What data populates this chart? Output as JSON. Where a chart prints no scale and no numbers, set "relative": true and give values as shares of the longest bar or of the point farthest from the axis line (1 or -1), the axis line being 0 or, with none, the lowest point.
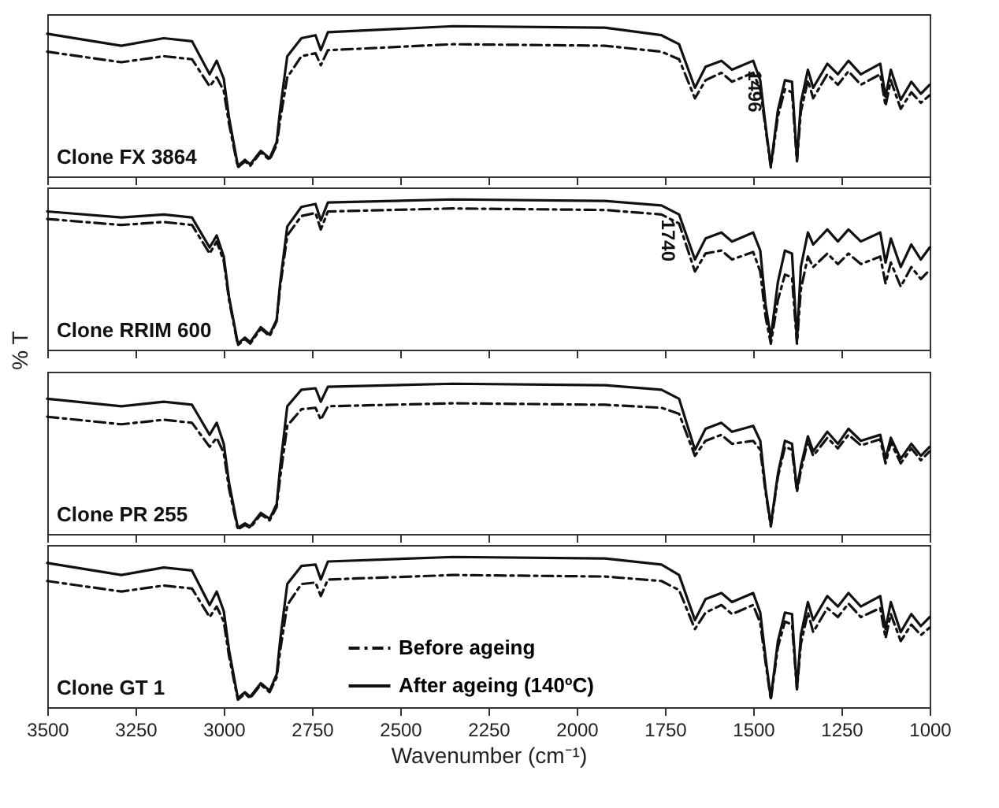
{
  "chart_data": [
    {
      "type": "line",
      "relative": true,
      "xlim": [
        3500,
        1000
      ],
      "xticks": [
        3500,
        3250,
        3000,
        2750,
        2500,
        2250,
        2000,
        1750,
        1500,
        1250,
        1000
      ],
      "tick_labels": false,
      "x": [
        3500,
        3290,
        3170,
        3090,
        3040,
        3020,
        3000,
        2985,
        2960,
        2940,
        2925,
        2895,
        2870,
        2850,
        2840,
        2820,
        2780,
        2740,
        2725,
        2705,
        2350,
        1920,
        1760,
        1710,
        1665,
        1635,
        1590,
        1560,
        1500,
        1480,
        1465,
        1450,
        1430,
        1410,
        1390,
        1376,
        1365,
        1345,
        1330,
        1290,
        1260,
        1230,
        1195,
        1140,
        1125,
        1110,
        1082,
        1052,
        1025,
        1000
      ],
      "annotations": [
        "Clone FX 3864",
        {
          "text": "1496",
          "x": 1496,
          "y": 0.77
        }
      ],
      "series": [
        {
          "color": "#111111",
          "line_style": "dashed",
          "values": [
            0.83,
            0.76,
            0.8,
            0.78,
            0.6,
            0.66,
            0.57,
            0.35,
            0.06,
            0.1,
            0.07,
            0.16,
            0.11,
            0.21,
            0.38,
            0.66,
            0.8,
            0.82,
            0.74,
            0.84,
            0.88,
            0.87,
            0.83,
            0.78,
            0.52,
            0.64,
            0.69,
            0.63,
            0.69,
            0.58,
            0.32,
            0.06,
            0.4,
            0.58,
            0.56,
            0.1,
            0.43,
            0.64,
            0.52,
            0.68,
            0.61,
            0.7,
            0.61,
            0.68,
            0.47,
            0.64,
            0.45,
            0.56,
            0.49,
            0.54
          ]
        },
        {
          "color": "#111111",
          "line_style": "solid",
          "values": [
            0.95,
            0.87,
            0.92,
            0.9,
            0.68,
            0.77,
            0.65,
            0.39,
            0.07,
            0.11,
            0.08,
            0.17,
            0.12,
            0.23,
            0.45,
            0.8,
            0.92,
            0.94,
            0.84,
            0.96,
            1.0,
            0.99,
            0.94,
            0.88,
            0.59,
            0.73,
            0.77,
            0.71,
            0.77,
            0.64,
            0.34,
            0.07,
            0.44,
            0.64,
            0.63,
            0.11,
            0.49,
            0.71,
            0.59,
            0.75,
            0.68,
            0.77,
            0.68,
            0.75,
            0.53,
            0.71,
            0.51,
            0.63,
            0.55,
            0.61
          ]
        }
      ]
    },
    {
      "type": "line",
      "relative": true,
      "xlim": [
        3500,
        1000
      ],
      "xticks": [
        3500,
        3250,
        3000,
        2750,
        2500,
        2250,
        2000,
        1750,
        1500,
        1250,
        1000
      ],
      "tick_labels": false,
      "ylabel": "% T",
      "x": [
        3500,
        3290,
        3170,
        3090,
        3040,
        3020,
        3000,
        2985,
        2960,
        2940,
        2925,
        2895,
        2870,
        2850,
        2840,
        2820,
        2780,
        2740,
        2725,
        2705,
        2350,
        1920,
        1760,
        1710,
        1665,
        1635,
        1590,
        1560,
        1500,
        1480,
        1465,
        1450,
        1430,
        1410,
        1390,
        1376,
        1365,
        1345,
        1330,
        1290,
        1260,
        1230,
        1195,
        1140,
        1125,
        1110,
        1082,
        1052,
        1025,
        1000
      ],
      "annotations": [
        "Clone RRIM 600",
        {
          "text": "1740",
          "x": 1740,
          "y": 0.93
        }
      ],
      "series": [
        {
          "color": "#111111",
          "line_style": "dashed",
          "values": [
            0.87,
            0.83,
            0.85,
            0.83,
            0.64,
            0.72,
            0.59,
            0.33,
            0.03,
            0.07,
            0.04,
            0.14,
            0.09,
            0.19,
            0.42,
            0.76,
            0.89,
            0.91,
            0.8,
            0.92,
            0.94,
            0.93,
            0.9,
            0.84,
            0.52,
            0.64,
            0.66,
            0.6,
            0.65,
            0.52,
            0.22,
            0.04,
            0.33,
            0.5,
            0.48,
            0.04,
            0.4,
            0.62,
            0.55,
            0.64,
            0.57,
            0.64,
            0.57,
            0.62,
            0.44,
            0.58,
            0.42,
            0.55,
            0.47,
            0.53
          ]
        },
        {
          "color": "#111111",
          "line_style": "solid",
          "values": [
            0.92,
            0.88,
            0.9,
            0.88,
            0.68,
            0.76,
            0.62,
            0.35,
            0.04,
            0.08,
            0.05,
            0.15,
            0.1,
            0.2,
            0.45,
            0.82,
            0.95,
            0.97,
            0.86,
            0.98,
            1.0,
            0.99,
            0.96,
            0.9,
            0.6,
            0.74,
            0.78,
            0.72,
            0.78,
            0.66,
            0.3,
            0.08,
            0.45,
            0.66,
            0.64,
            0.06,
            0.55,
            0.78,
            0.7,
            0.8,
            0.72,
            0.8,
            0.72,
            0.78,
            0.58,
            0.74,
            0.55,
            0.7,
            0.6,
            0.68
          ]
        }
      ]
    },
    {
      "type": "line",
      "relative": true,
      "xlim": [
        3500,
        1000
      ],
      "xticks": [
        3500,
        3250,
        3000,
        2750,
        2500,
        2250,
        2000,
        1750,
        1500,
        1250,
        1000
      ],
      "tick_labels": false,
      "x": [
        3500,
        3290,
        3170,
        3090,
        3040,
        3020,
        3000,
        2985,
        2960,
        2940,
        2925,
        2895,
        2870,
        2850,
        2840,
        2820,
        2780,
        2740,
        2725,
        2705,
        2350,
        1920,
        1760,
        1710,
        1665,
        1635,
        1590,
        1560,
        1500,
        1480,
        1465,
        1450,
        1430,
        1410,
        1390,
        1376,
        1365,
        1345,
        1330,
        1290,
        1260,
        1230,
        1195,
        1140,
        1125,
        1110,
        1082,
        1052,
        1025,
        1000
      ],
      "annotations": [
        "Clone PR 255"
      ],
      "series": [
        {
          "color": "#111111",
          "line_style": "dashed",
          "values": [
            0.78,
            0.73,
            0.76,
            0.74,
            0.58,
            0.64,
            0.54,
            0.3,
            0.03,
            0.06,
            0.04,
            0.13,
            0.09,
            0.18,
            0.38,
            0.72,
            0.83,
            0.84,
            0.76,
            0.85,
            0.87,
            0.86,
            0.84,
            0.8,
            0.52,
            0.62,
            0.66,
            0.6,
            0.62,
            0.56,
            0.28,
            0.05,
            0.38,
            0.58,
            0.56,
            0.28,
            0.42,
            0.62,
            0.52,
            0.64,
            0.57,
            0.66,
            0.59,
            0.63,
            0.47,
            0.61,
            0.47,
            0.57,
            0.49,
            0.55
          ]
        },
        {
          "color": "#111111",
          "line_style": "solid",
          "values": [
            0.9,
            0.85,
            0.88,
            0.86,
            0.66,
            0.74,
            0.6,
            0.34,
            0.04,
            0.07,
            0.05,
            0.14,
            0.1,
            0.2,
            0.45,
            0.85,
            0.96,
            0.97,
            0.88,
            0.98,
            1.0,
            0.99,
            0.96,
            0.9,
            0.56,
            0.7,
            0.74,
            0.68,
            0.72,
            0.62,
            0.3,
            0.06,
            0.4,
            0.62,
            0.6,
            0.3,
            0.45,
            0.65,
            0.55,
            0.68,
            0.6,
            0.7,
            0.62,
            0.66,
            0.5,
            0.64,
            0.5,
            0.6,
            0.52,
            0.58
          ]
        }
      ]
    },
    {
      "type": "line",
      "relative": true,
      "xlim": [
        3500,
        1000
      ],
      "xticks": [
        3500,
        3250,
        3000,
        2750,
        2500,
        2250,
        2000,
        1750,
        1500,
        1250,
        1000
      ],
      "tick_labels": "x",
      "xlabel": "Wavenumber (cm⁻¹)",
      "legend": "bottom",
      "x": [
        3500,
        3290,
        3170,
        3090,
        3040,
        3020,
        3000,
        2985,
        2960,
        2940,
        2925,
        2895,
        2870,
        2850,
        2840,
        2820,
        2780,
        2740,
        2725,
        2705,
        2350,
        1920,
        1760,
        1710,
        1665,
        1635,
        1590,
        1560,
        1500,
        1480,
        1465,
        1450,
        1430,
        1410,
        1390,
        1376,
        1365,
        1345,
        1330,
        1290,
        1260,
        1230,
        1195,
        1140,
        1125,
        1110,
        1082,
        1052,
        1025,
        1000
      ],
      "annotations": [
        "Clone GT 1"
      ],
      "series": [
        {
          "name": "Before ageing",
          "color": "#111111",
          "line_style": "dashed",
          "values": [
            0.84,
            0.77,
            0.81,
            0.79,
            0.6,
            0.67,
            0.57,
            0.34,
            0.05,
            0.09,
            0.06,
            0.15,
            0.1,
            0.2,
            0.38,
            0.68,
            0.82,
            0.83,
            0.74,
            0.85,
            0.88,
            0.87,
            0.84,
            0.78,
            0.52,
            0.63,
            0.68,
            0.62,
            0.68,
            0.56,
            0.3,
            0.05,
            0.4,
            0.57,
            0.55,
            0.12,
            0.42,
            0.63,
            0.5,
            0.66,
            0.6,
            0.69,
            0.6,
            0.66,
            0.46,
            0.62,
            0.44,
            0.55,
            0.48,
            0.53
          ]
        },
        {
          "name": "After ageing (140ºC)",
          "color": "#111111",
          "line_style": "solid",
          "values": [
            0.96,
            0.88,
            0.93,
            0.91,
            0.68,
            0.77,
            0.64,
            0.38,
            0.06,
            0.1,
            0.07,
            0.16,
            0.11,
            0.22,
            0.45,
            0.82,
            0.94,
            0.95,
            0.85,
            0.97,
            1.0,
            0.99,
            0.95,
            0.88,
            0.58,
            0.72,
            0.76,
            0.7,
            0.76,
            0.63,
            0.33,
            0.06,
            0.44,
            0.63,
            0.62,
            0.12,
            0.48,
            0.7,
            0.58,
            0.74,
            0.67,
            0.76,
            0.67,
            0.74,
            0.52,
            0.7,
            0.5,
            0.62,
            0.54,
            0.6
          ]
        }
      ]
    }
  ]
}
